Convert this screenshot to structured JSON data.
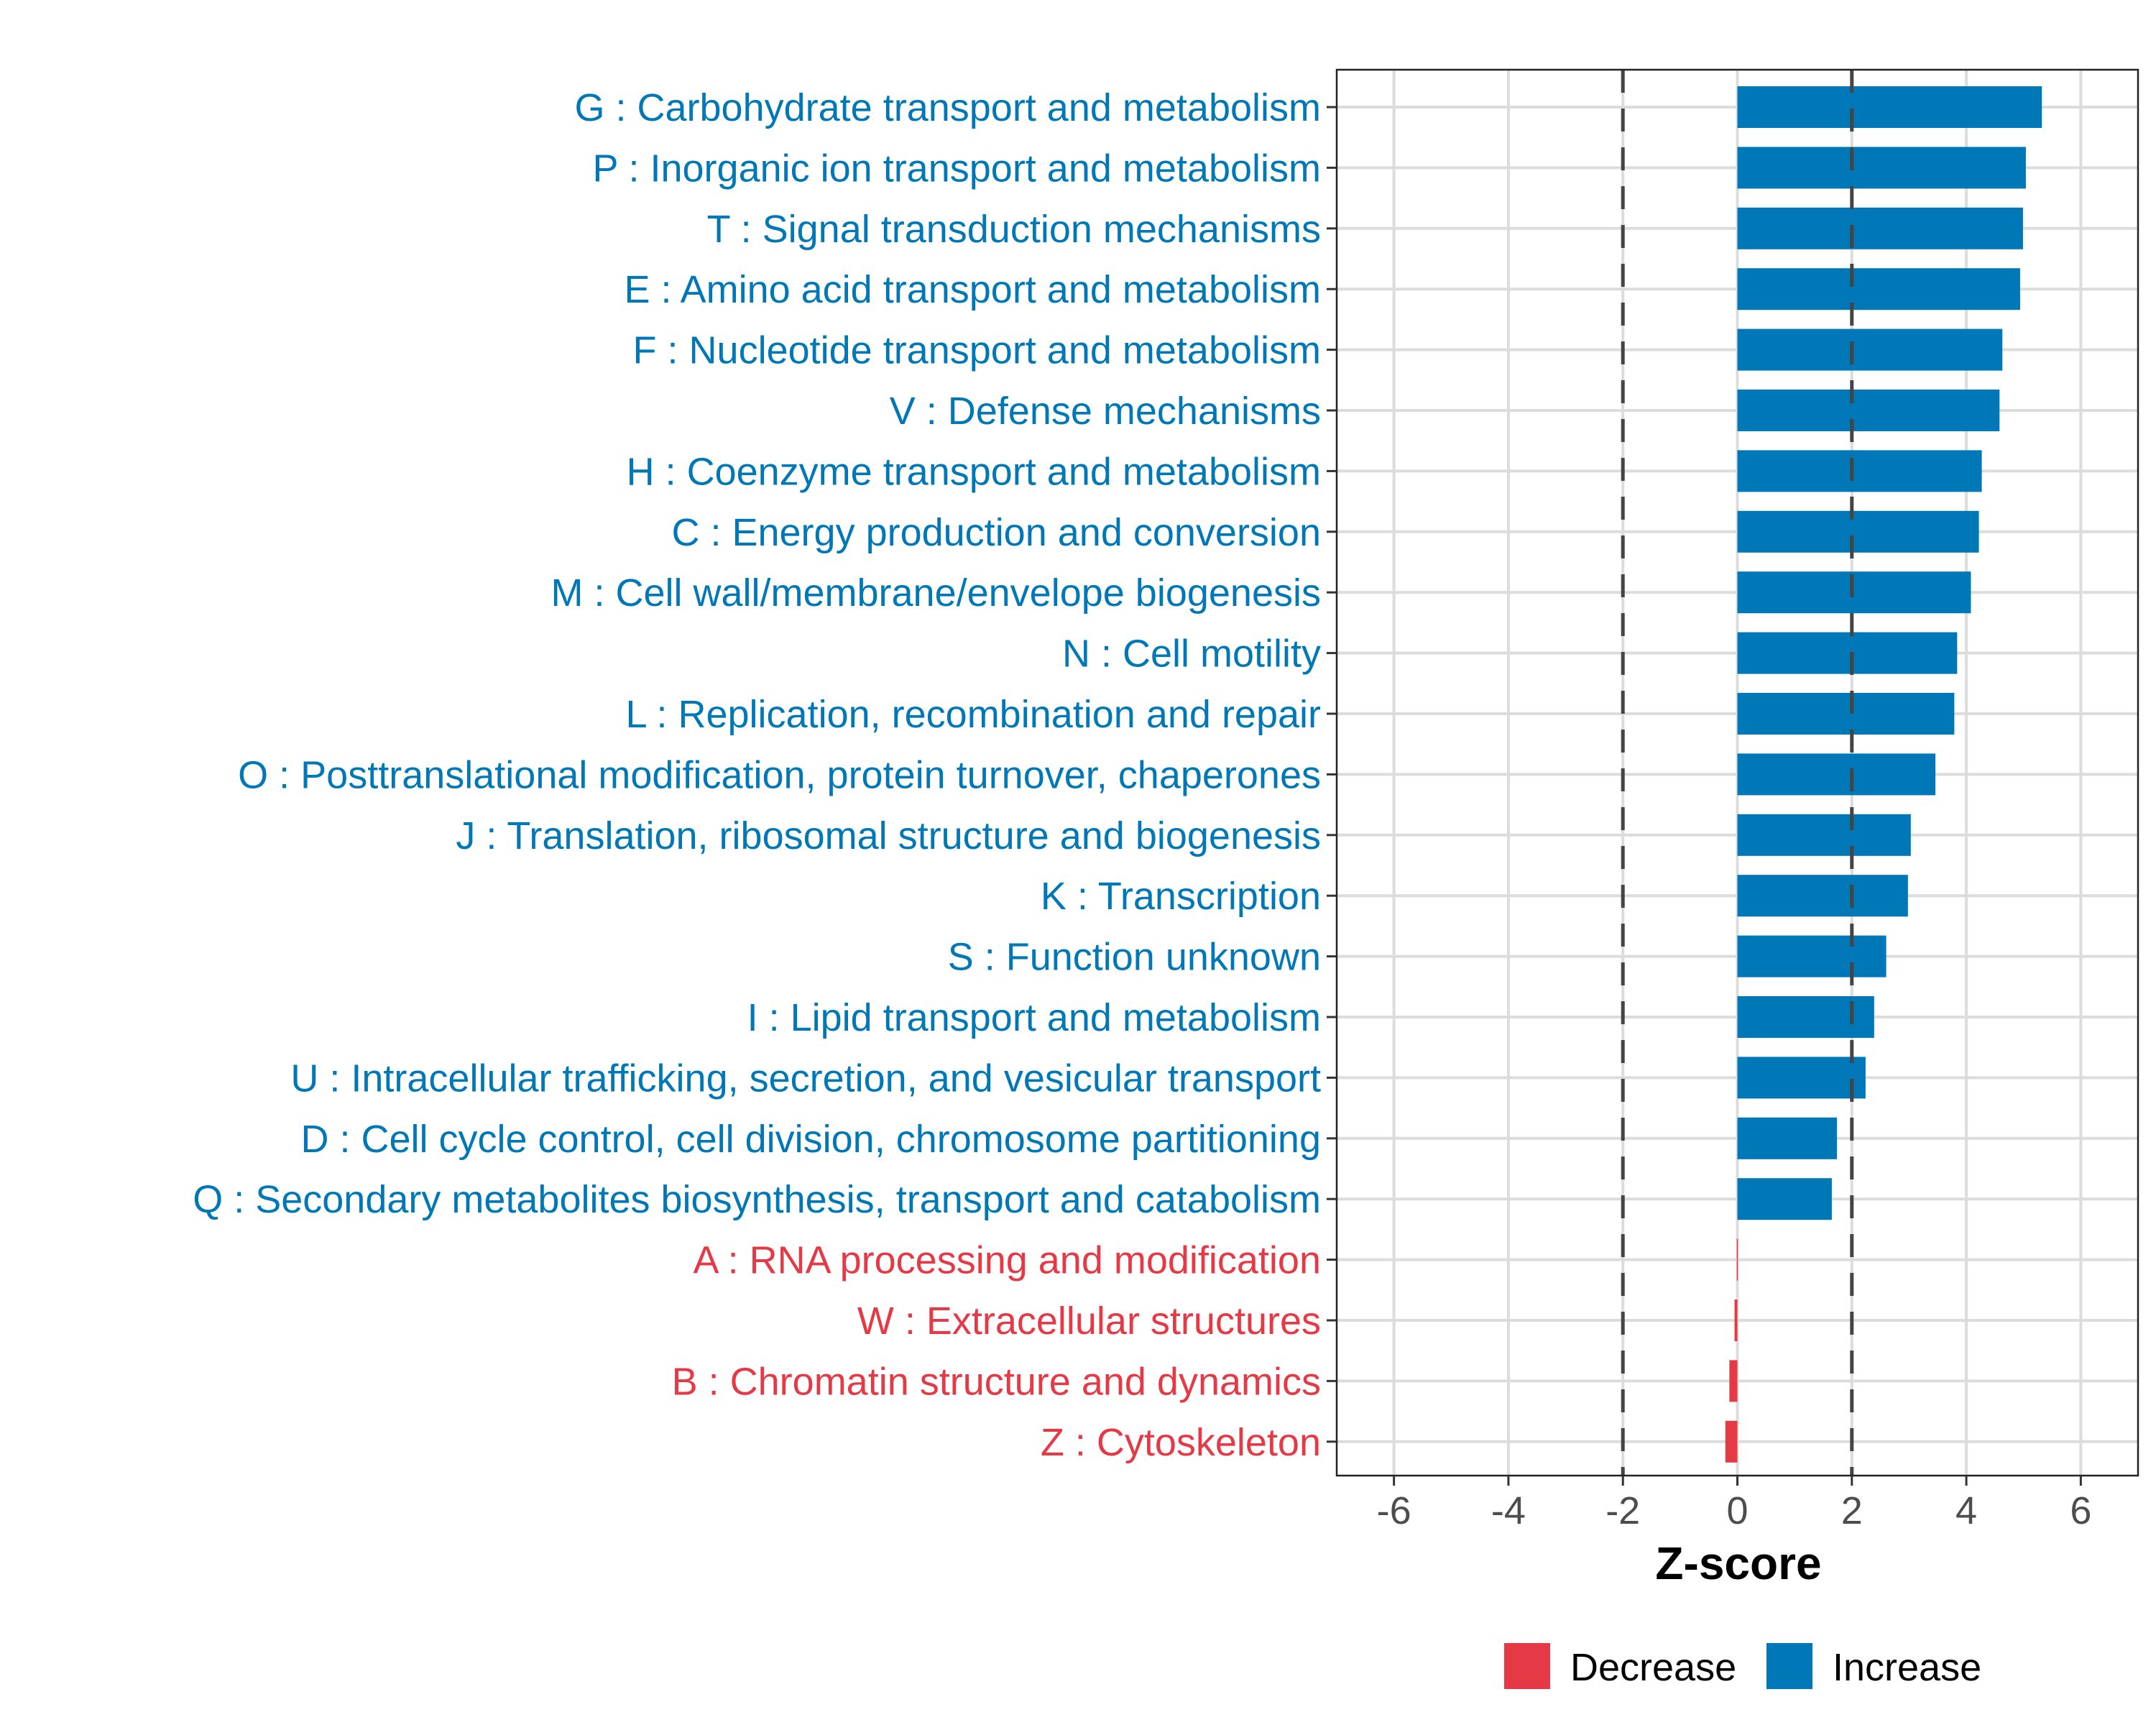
{
  "chart_data": {
    "type": "bar",
    "orientation": "horizontal",
    "title": "",
    "xlabel": "Z-score",
    "ylabel": "",
    "xlim": [
      -7,
      7
    ],
    "xticks": [
      -6,
      -4,
      -2,
      0,
      2,
      4,
      6
    ],
    "reference_lines": [
      -2,
      2
    ],
    "grid": true,
    "legend_position": "bottom",
    "colors": {
      "Decrease": "#E63946",
      "Increase": "#0077B6"
    },
    "legend": [
      "Decrease",
      "Increase"
    ],
    "categories": [
      "G : Carbohydrate transport and metabolism",
      "P : Inorganic ion transport and metabolism",
      "T : Signal transduction mechanisms",
      "E : Amino acid transport and metabolism",
      "F : Nucleotide transport and metabolism",
      "V : Defense mechanisms",
      "H : Coenzyme transport and metabolism",
      "C : Energy production and conversion",
      "M : Cell wall/membrane/envelope biogenesis",
      "N : Cell motility",
      "L : Replication, recombination and repair",
      "O : Posttranslational modification, protein turnover, chaperones",
      "J : Translation, ribosomal structure and biogenesis",
      "K : Transcription",
      "S : Function unknown",
      "I : Lipid transport and metabolism",
      "U : Intracellular trafficking, secretion, and vesicular transport",
      "D : Cell cycle control, cell division, chromosome partitioning",
      "Q : Secondary metabolites biosynthesis, transport and catabolism",
      "A : RNA processing and modification",
      "W : Extracellular structures",
      "B : Chromatin structure and dynamics",
      "Z : Cytoskeleton"
    ],
    "values": [
      5.32,
      5.04,
      4.99,
      4.94,
      4.63,
      4.58,
      4.27,
      4.22,
      4.08,
      3.84,
      3.79,
      3.46,
      3.03,
      2.98,
      2.6,
      2.39,
      2.24,
      1.74,
      1.65,
      -0.01,
      -0.05,
      -0.14,
      -0.21
    ],
    "groups": [
      "Increase",
      "Increase",
      "Increase",
      "Increase",
      "Increase",
      "Increase",
      "Increase",
      "Increase",
      "Increase",
      "Increase",
      "Increase",
      "Increase",
      "Increase",
      "Increase",
      "Increase",
      "Increase",
      "Increase",
      "Increase",
      "Increase",
      "Decrease",
      "Decrease",
      "Decrease",
      "Decrease"
    ]
  }
}
